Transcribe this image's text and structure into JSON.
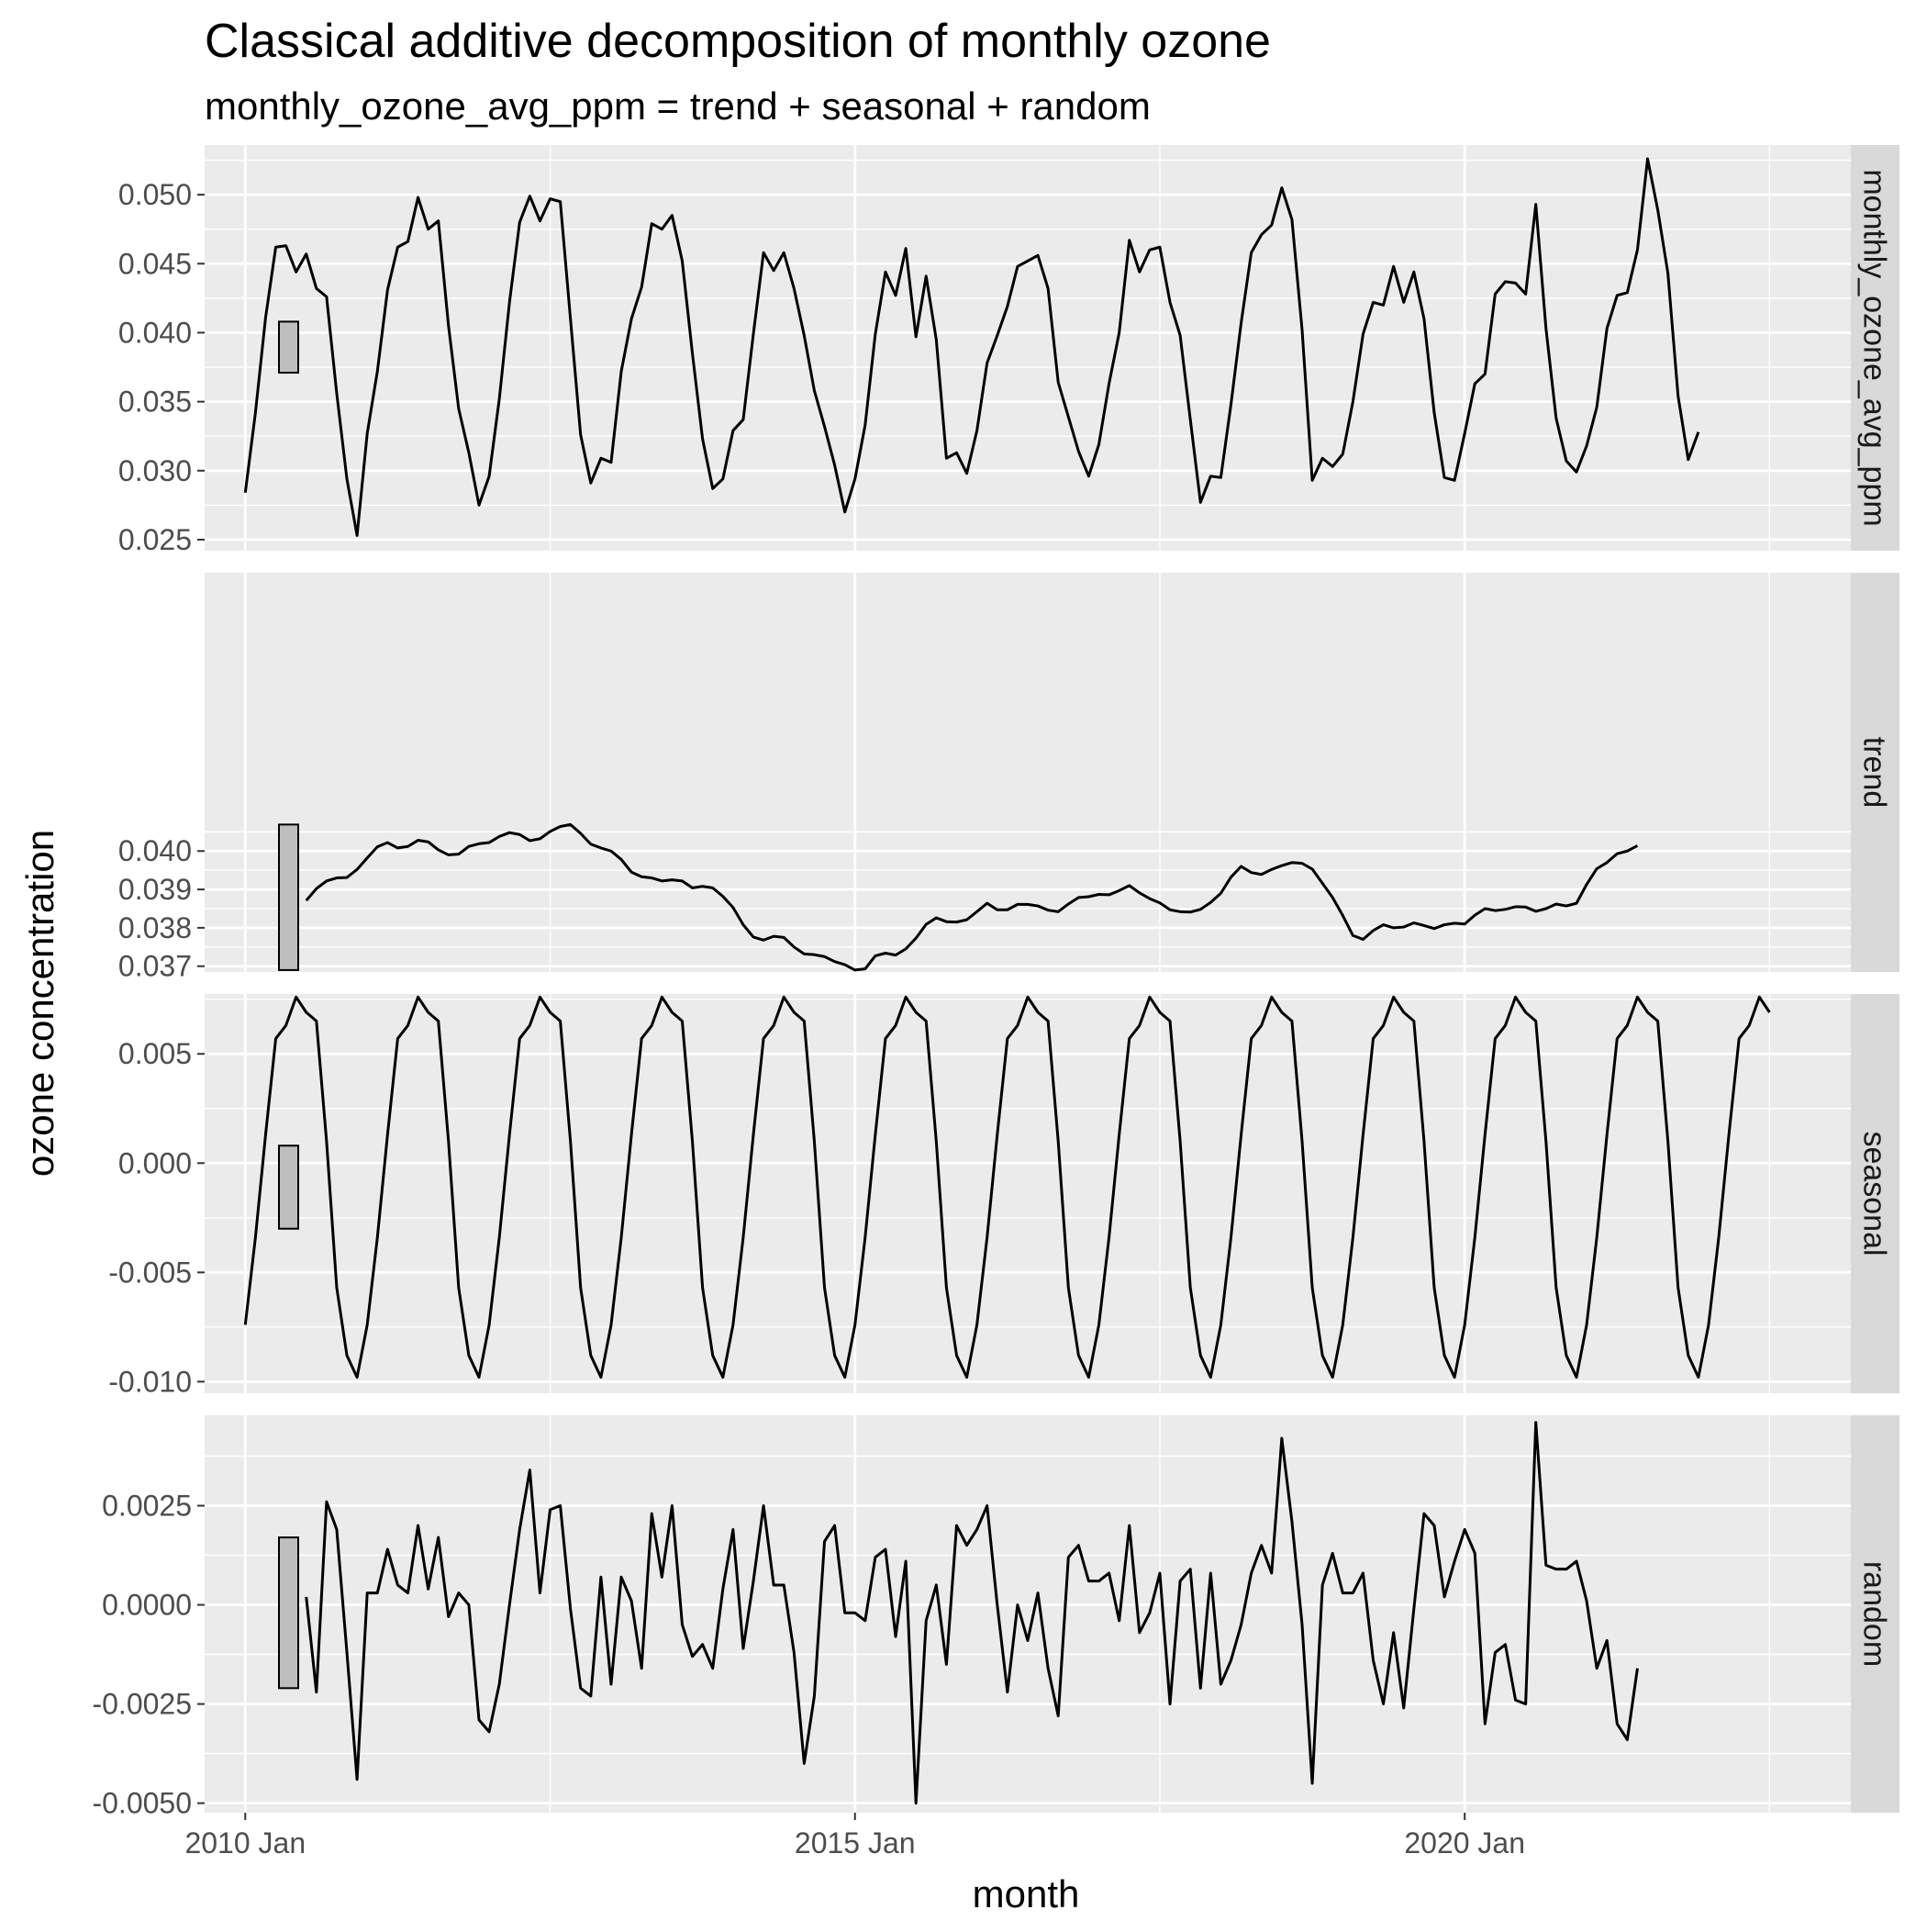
{
  "chart_data": {
    "type": "line",
    "title": "Classical additive decomposition of monthly ozone",
    "subtitle": "monthly_ozone_avg_ppm = trend + seasonal + random",
    "xlabel": "month",
    "ylabel": "ozone concentration",
    "x_ticks": [
      "2010 Jan",
      "2015 Jan",
      "2020 Jan"
    ],
    "x_range": [
      "2009-09",
      "2023-03"
    ],
    "grid": true,
    "colors": {
      "panel_bg": "#ebebeb",
      "grid": "#ffffff",
      "strip_bg": "#d9d9d9",
      "line": "#000000",
      "scale_bar": "#bebebe"
    },
    "panels": [
      {
        "strip": "monthly_ozone_avg_ppm",
        "ylim": [
          0.0242,
          0.0536
        ],
        "y_ticks": [
          0.025,
          0.03,
          0.035,
          0.04,
          0.045,
          0.05
        ],
        "y_tick_labels": [
          "0.025",
          "0.030",
          "0.035",
          "0.040",
          "0.045",
          "0.050"
        ],
        "scale_bar": [
          0.0371,
          0.0408
        ],
        "start": "2010-01",
        "values": [
          0.0284,
          0.0342,
          0.0411,
          0.0462,
          0.0463,
          0.0444,
          0.0457,
          0.0432,
          0.0426,
          0.0356,
          0.0294,
          0.0253,
          0.0327,
          0.0372,
          0.0431,
          0.0462,
          0.0466,
          0.0498,
          0.0475,
          0.0481,
          0.0405,
          0.0345,
          0.0313,
          0.0275,
          0.0296,
          0.0352,
          0.0422,
          0.048,
          0.0499,
          0.0481,
          0.0497,
          0.0495,
          0.041,
          0.0326,
          0.0291,
          0.0309,
          0.0306,
          0.0372,
          0.041,
          0.0433,
          0.0479,
          0.0475,
          0.0485,
          0.0452,
          0.0385,
          0.0323,
          0.0287,
          0.0294,
          0.0329,
          0.0337,
          0.0399,
          0.0458,
          0.0445,
          0.0458,
          0.0432,
          0.0398,
          0.0358,
          0.0332,
          0.0304,
          0.027,
          0.0294,
          0.0333,
          0.0399,
          0.0444,
          0.0427,
          0.0461,
          0.0397,
          0.0441,
          0.0395,
          0.0309,
          0.0313,
          0.0298,
          0.0329,
          0.0378,
          0.0398,
          0.0419,
          0.0448,
          0.0452,
          0.0456,
          0.0432,
          0.0364,
          0.0339,
          0.0314,
          0.0296,
          0.0319,
          0.0363,
          0.04,
          0.0467,
          0.0444,
          0.046,
          0.0462,
          0.0422,
          0.0398,
          0.0337,
          0.0277,
          0.0296,
          0.0295,
          0.0348,
          0.0407,
          0.0458,
          0.0471,
          0.0478,
          0.0505,
          0.0482,
          0.0402,
          0.0293,
          0.0309,
          0.0303,
          0.0312,
          0.035,
          0.0399,
          0.0422,
          0.042,
          0.0448,
          0.0422,
          0.0444,
          0.041,
          0.0342,
          0.0295,
          0.0293,
          0.0327,
          0.0363,
          0.037,
          0.0428,
          0.0437,
          0.0436,
          0.0428,
          0.0493,
          0.0403,
          0.0338,
          0.0307,
          0.0299,
          0.0318,
          0.0346,
          0.0403,
          0.0427,
          0.0429,
          0.046,
          0.0526,
          0.0489,
          0.0443,
          0.0354,
          0.0308,
          0.0328
        ]
      },
      {
        "strip": "trend",
        "ylim": [
          0.03685,
          0.04725
        ],
        "y_ticks": [
          0.037,
          0.038,
          0.039,
          0.04
        ],
        "y_tick_labels": [
          "0.037",
          "0.038",
          "0.039",
          "0.040"
        ],
        "scale_bar": [
          0.0369,
          0.04069
        ],
        "start": "2010-07",
        "values": [
          0.03871,
          0.03902,
          0.03922,
          0.0393,
          0.03931,
          0.03952,
          0.03982,
          0.04011,
          0.04022,
          0.04008,
          0.04012,
          0.04028,
          0.04024,
          0.04003,
          0.0399,
          0.03992,
          0.04012,
          0.04019,
          0.04022,
          0.04038,
          0.04048,
          0.04043,
          0.04027,
          0.04032,
          0.04051,
          0.04064,
          0.04069,
          0.04046,
          0.04018,
          0.04008,
          0.04,
          0.03978,
          0.03945,
          0.03933,
          0.0393,
          0.03922,
          0.03925,
          0.03922,
          0.03904,
          0.03908,
          0.03904,
          0.03882,
          0.03853,
          0.03808,
          0.03776,
          0.03768,
          0.03778,
          0.03775,
          0.0375,
          0.03732,
          0.0373,
          0.03725,
          0.03712,
          0.03704,
          0.0369,
          0.03693,
          0.03727,
          0.03734,
          0.03729,
          0.03745,
          0.03773,
          0.03809,
          0.03826,
          0.03816,
          0.03815,
          0.03821,
          0.03842,
          0.03864,
          0.03847,
          0.03847,
          0.03861,
          0.03861,
          0.03857,
          0.03846,
          0.03842,
          0.03862,
          0.03879,
          0.03881,
          0.03887,
          0.03886,
          0.03897,
          0.0391,
          0.03891,
          0.03876,
          0.03865,
          0.03847,
          0.03842,
          0.03841,
          0.03848,
          0.03866,
          0.0389,
          0.03932,
          0.0396,
          0.03944,
          0.03939,
          0.03952,
          0.03962,
          0.0397,
          0.03968,
          0.03953,
          0.03916,
          0.03879,
          0.03832,
          0.0378,
          0.0377,
          0.03793,
          0.03808,
          0.038,
          0.03802,
          0.03813,
          0.03806,
          0.03798,
          0.03808,
          0.03812,
          0.0381,
          0.03833,
          0.0385,
          0.03845,
          0.03848,
          0.03855,
          0.03854,
          0.03843,
          0.0385,
          0.03862,
          0.03857,
          0.03864,
          0.03913,
          0.03954,
          0.0397,
          0.03993,
          0.04,
          0.04014
        ]
      },
      {
        "strip": "seasonal",
        "ylim": [
          -0.01053,
          0.00774
        ],
        "y_ticks": [
          -0.01,
          -0.005,
          0.0,
          0.005
        ],
        "y_tick_labels": [
          "-0.010",
          "-0.005",
          "0.000",
          "0.005"
        ],
        "scale_bar": [
          -0.003,
          0.0008
        ],
        "start": "2010-01",
        "values": [
          -0.0074,
          -0.0034,
          0.0013,
          0.0057,
          0.0063,
          0.0076,
          0.0069,
          0.0065,
          0.001,
          -0.0057,
          -0.0088,
          -0.0098,
          -0.0074,
          -0.0034,
          0.0013,
          0.0057,
          0.0063,
          0.0076,
          0.0069,
          0.0065,
          0.001,
          -0.0057,
          -0.0088,
          -0.0098,
          -0.0074,
          -0.0034,
          0.0013,
          0.0057,
          0.0063,
          0.0076,
          0.0069,
          0.0065,
          0.001,
          -0.0057,
          -0.0088,
          -0.0098,
          -0.0074,
          -0.0034,
          0.0013,
          0.0057,
          0.0063,
          0.0076,
          0.0069,
          0.0065,
          0.001,
          -0.0057,
          -0.0088,
          -0.0098,
          -0.0074,
          -0.0034,
          0.0013,
          0.0057,
          0.0063,
          0.0076,
          0.0069,
          0.0065,
          0.001,
          -0.0057,
          -0.0088,
          -0.0098,
          -0.0074,
          -0.0034,
          0.0013,
          0.0057,
          0.0063,
          0.0076,
          0.0069,
          0.0065,
          0.001,
          -0.0057,
          -0.0088,
          -0.0098,
          -0.0074,
          -0.0034,
          0.0013,
          0.0057,
          0.0063,
          0.0076,
          0.0069,
          0.0065,
          0.001,
          -0.0057,
          -0.0088,
          -0.0098,
          -0.0074,
          -0.0034,
          0.0013,
          0.0057,
          0.0063,
          0.0076,
          0.0069,
          0.0065,
          0.001,
          -0.0057,
          -0.0088,
          -0.0098,
          -0.0074,
          -0.0034,
          0.0013,
          0.0057,
          0.0063,
          0.0076,
          0.0069,
          0.0065,
          0.001,
          -0.0057,
          -0.0088,
          -0.0098,
          -0.0074,
          -0.0034,
          0.0013,
          0.0057,
          0.0063,
          0.0076,
          0.0069,
          0.0065,
          0.001,
          -0.0057,
          -0.0088,
          -0.0098,
          -0.0074,
          -0.0034,
          0.0013,
          0.0057,
          0.0063,
          0.0076,
          0.0069,
          0.0065,
          0.001,
          -0.0057,
          -0.0088,
          -0.0098,
          -0.0074,
          -0.0034,
          0.0013,
          0.0057,
          0.0063,
          0.0076,
          0.0069,
          0.0065,
          0.001,
          -0.0057,
          -0.0088,
          -0.0098,
          -0.0074,
          -0.0034,
          0.0013,
          0.0057,
          0.0063,
          0.0076,
          0.0069
        ]
      },
      {
        "strip": "random",
        "ylim": [
          -0.00524,
          0.00478
        ],
        "y_ticks": [
          -0.005,
          -0.0025,
          0.0,
          0.0025
        ],
        "y_tick_labels": [
          "-0.0050",
          "-0.0025",
          "0.0000",
          "0.0025"
        ],
        "scale_bar": [
          -0.0021,
          0.0017
        ],
        "start": "2010-07",
        "values": [
          0.0002,
          -0.0022,
          0.0026,
          0.0019,
          -0.0012,
          -0.0044,
          0.0003,
          0.0003,
          0.0014,
          0.0005,
          0.0003,
          0.002,
          0.0004,
          0.0017,
          -0.0003,
          0.0003,
          0.0,
          -0.0029,
          -0.0032,
          -0.002,
          0.0,
          0.0019,
          0.0034,
          0.0003,
          0.0024,
          0.0025,
          -0.0001,
          -0.0021,
          -0.0023,
          0.0007,
          -0.002,
          0.0007,
          0.0001,
          -0.0016,
          0.0023,
          0.0007,
          0.0025,
          -0.0005,
          -0.0013,
          -0.001,
          -0.0016,
          0.0004,
          0.0019,
          -0.0011,
          0.0006,
          0.0025,
          0.0005,
          0.0005,
          -0.0012,
          -0.004,
          -0.0023,
          0.0016,
          0.002,
          -0.0002,
          -0.0002,
          -0.0004,
          0.0012,
          0.0014,
          -0.0008,
          0.0011,
          -0.005,
          -0.0004,
          0.0005,
          -0.0015,
          0.002,
          0.0015,
          0.0019,
          0.0025,
          0.0,
          -0.0022,
          0.0,
          -0.0009,
          0.0003,
          -0.0016,
          -0.0028,
          0.0012,
          0.0015,
          0.0006,
          0.0006,
          0.0008,
          -0.0004,
          0.002,
          -0.0007,
          -0.0002,
          0.0008,
          -0.0025,
          0.0006,
          0.0009,
          -0.0021,
          0.0008,
          -0.002,
          -0.0014,
          -0.0005,
          0.0008,
          0.0015,
          0.0008,
          0.0042,
          0.0021,
          -0.0005,
          -0.0045,
          0.0005,
          0.0013,
          0.0003,
          0.0003,
          0.0008,
          -0.0014,
          -0.0025,
          -0.0007,
          -0.0026,
          -0.0001,
          0.0023,
          0.002,
          0.0002,
          0.0011,
          0.0019,
          0.0013,
          -0.003,
          -0.0012,
          -0.001,
          -0.0024,
          -0.0025,
          0.0046,
          0.001,
          0.0009,
          0.0009,
          0.0011,
          0.0001,
          -0.0016,
          -0.0009,
          -0.003,
          -0.0034,
          -0.0016
        ]
      }
    ]
  }
}
